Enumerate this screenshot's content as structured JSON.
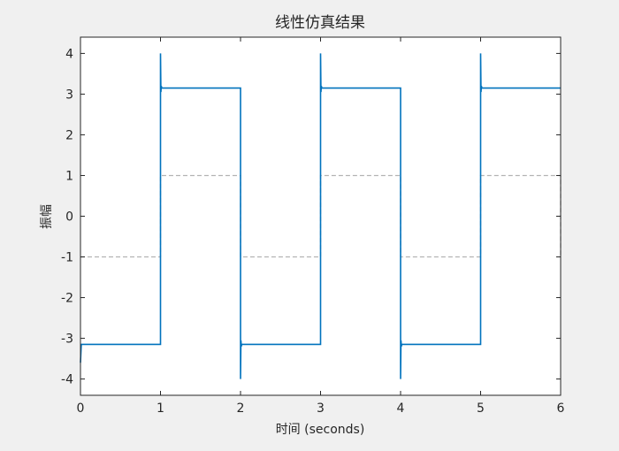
{
  "chart_data": {
    "type": "line",
    "title": "线性仿真结果",
    "xlabel": "时间 (seconds)",
    "ylabel": "振幅",
    "xlim": [
      0,
      6
    ],
    "ylim": [
      -4.4,
      4.4
    ],
    "xticks": [
      0,
      1,
      2,
      3,
      4,
      5,
      6
    ],
    "yticks": [
      -4,
      -3,
      -2,
      -1,
      0,
      1,
      2,
      3,
      4
    ],
    "grid": false,
    "legend": "none",
    "series": [
      {
        "style": "dashed",
        "color": "#b3b3b3",
        "points": [
          [
            0,
            -1
          ],
          [
            1,
            -1
          ],
          [
            1,
            1
          ],
          [
            2,
            1
          ],
          [
            2,
            -1
          ],
          [
            3,
            -1
          ],
          [
            3,
            1
          ],
          [
            4,
            1
          ],
          [
            4,
            -1
          ],
          [
            5,
            -1
          ],
          [
            5,
            1
          ],
          [
            6,
            1
          ],
          [
            6,
            -1
          ]
        ]
      },
      {
        "style": "solid",
        "color": "#0072bd",
        "points": [
          [
            0,
            -3.6
          ],
          [
            0.01,
            -3.15
          ],
          [
            1,
            -3.15
          ],
          [
            1,
            4.0
          ],
          [
            1.005,
            3.05
          ],
          [
            1.01,
            3.2
          ],
          [
            1.015,
            3.15
          ],
          [
            2,
            3.15
          ],
          [
            2,
            -4.0
          ],
          [
            2.005,
            -3.05
          ],
          [
            2.01,
            -3.2
          ],
          [
            2.015,
            -3.15
          ],
          [
            3,
            -3.15
          ],
          [
            3,
            4.0
          ],
          [
            3.005,
            3.05
          ],
          [
            3.01,
            3.2
          ],
          [
            3.015,
            3.15
          ],
          [
            4,
            3.15
          ],
          [
            4,
            -4.0
          ],
          [
            4.005,
            -3.05
          ],
          [
            4.01,
            -3.2
          ],
          [
            4.015,
            -3.15
          ],
          [
            5,
            -3.15
          ],
          [
            5,
            4.0
          ],
          [
            5.005,
            3.05
          ],
          [
            5.01,
            3.2
          ],
          [
            5.015,
            3.15
          ],
          [
            6,
            3.15
          ]
        ]
      }
    ]
  }
}
